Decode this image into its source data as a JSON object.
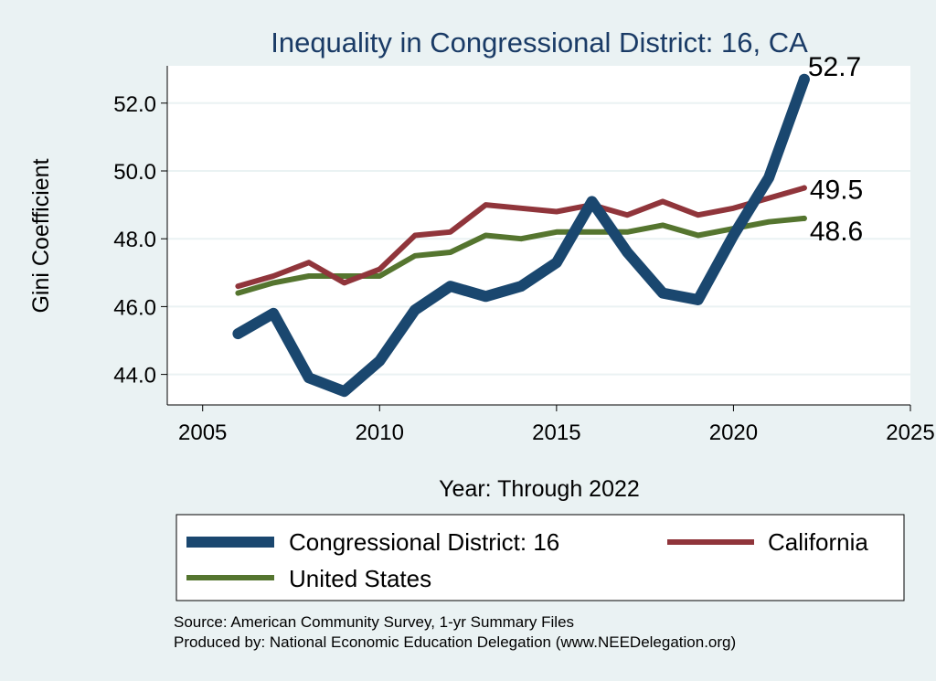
{
  "chart_data": {
    "type": "line",
    "title": "Inequality in Congressional District:  16, CA",
    "xlabel": "Year: Through 2022",
    "ylabel": "Gini Coefficient",
    "xlim": [
      2004,
      2025
    ],
    "ylim": [
      43.1,
      53.1
    ],
    "x_ticks": [
      2005,
      2010,
      2015,
      2020,
      2025
    ],
    "y_ticks": [
      44.0,
      46.0,
      48.0,
      50.0,
      52.0
    ],
    "x": [
      2006,
      2007,
      2008,
      2009,
      2010,
      2011,
      2012,
      2013,
      2014,
      2015,
      2016,
      2017,
      2018,
      2019,
      2020,
      2021,
      2022
    ],
    "series": [
      {
        "name": "Congressional District:  16",
        "color": "#1a476f",
        "values": [
          45.2,
          45.8,
          43.9,
          43.5,
          44.4,
          45.9,
          46.6,
          46.3,
          46.6,
          47.3,
          49.1,
          47.6,
          46.4,
          46.2,
          48.1,
          49.8,
          52.7
        ],
        "end_label": "52.7"
      },
      {
        "name": "California",
        "color": "#90353b",
        "values": [
          46.6,
          46.9,
          47.3,
          46.7,
          47.1,
          48.1,
          48.2,
          49.0,
          48.9,
          48.8,
          49.0,
          48.7,
          49.1,
          48.7,
          48.9,
          49.2,
          49.5
        ],
        "end_label": "49.5"
      },
      {
        "name": "United States",
        "color": "#55752f",
        "values": [
          46.4,
          46.7,
          46.9,
          46.9,
          46.9,
          47.5,
          47.6,
          48.1,
          48.0,
          48.2,
          48.2,
          48.2,
          48.4,
          48.1,
          48.3,
          48.5,
          48.6
        ],
        "end_label": "48.6"
      }
    ],
    "legend_position": "bottom",
    "grid": true
  },
  "notes": {
    "source": "Source: American Community Survey, 1-yr Summary Files",
    "produced": "Produced by: National Economic Education Delegation (www.NEEDelegation.org)"
  }
}
